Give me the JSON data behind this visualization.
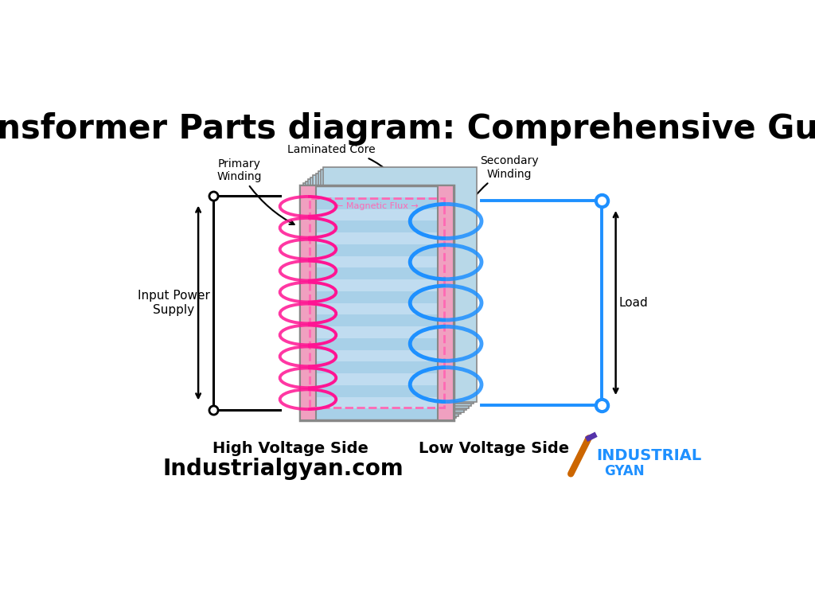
{
  "title": "Transformer Parts diagram: Comprehensive Guide",
  "title_fontsize": 30,
  "title_fontweight": "bold",
  "bg_color": "#ffffff",
  "primary_coil_color": "#FF1493",
  "secondary_coil_color": "#1E90FF",
  "core_front_color": "#C8C8C8",
  "core_fill_color": "#B8D8E8",
  "core_stripe_color": "#A0C8E0",
  "core_border_color": "#888888",
  "flux_box_color": "#FF69B4",
  "text_color": "#000000",
  "label_primary_winding": "Primary\nWinding",
  "label_secondary_winding": "Secondary\nWinding",
  "label_laminated_core": "Laminated Core",
  "label_magnetic_flux": "Magnetic Flux",
  "label_input_power": "Input Power\nSupply",
  "label_load": "Load",
  "label_high_voltage": "High Voltage Side",
  "label_low_voltage": "Low Voltage Side",
  "label_website": "Industrialgyan.com",
  "website_fontsize": 20,
  "website_fontweight": "bold",
  "primary_n_turns": 10,
  "secondary_n_turns": 5,
  "note_font": 9
}
